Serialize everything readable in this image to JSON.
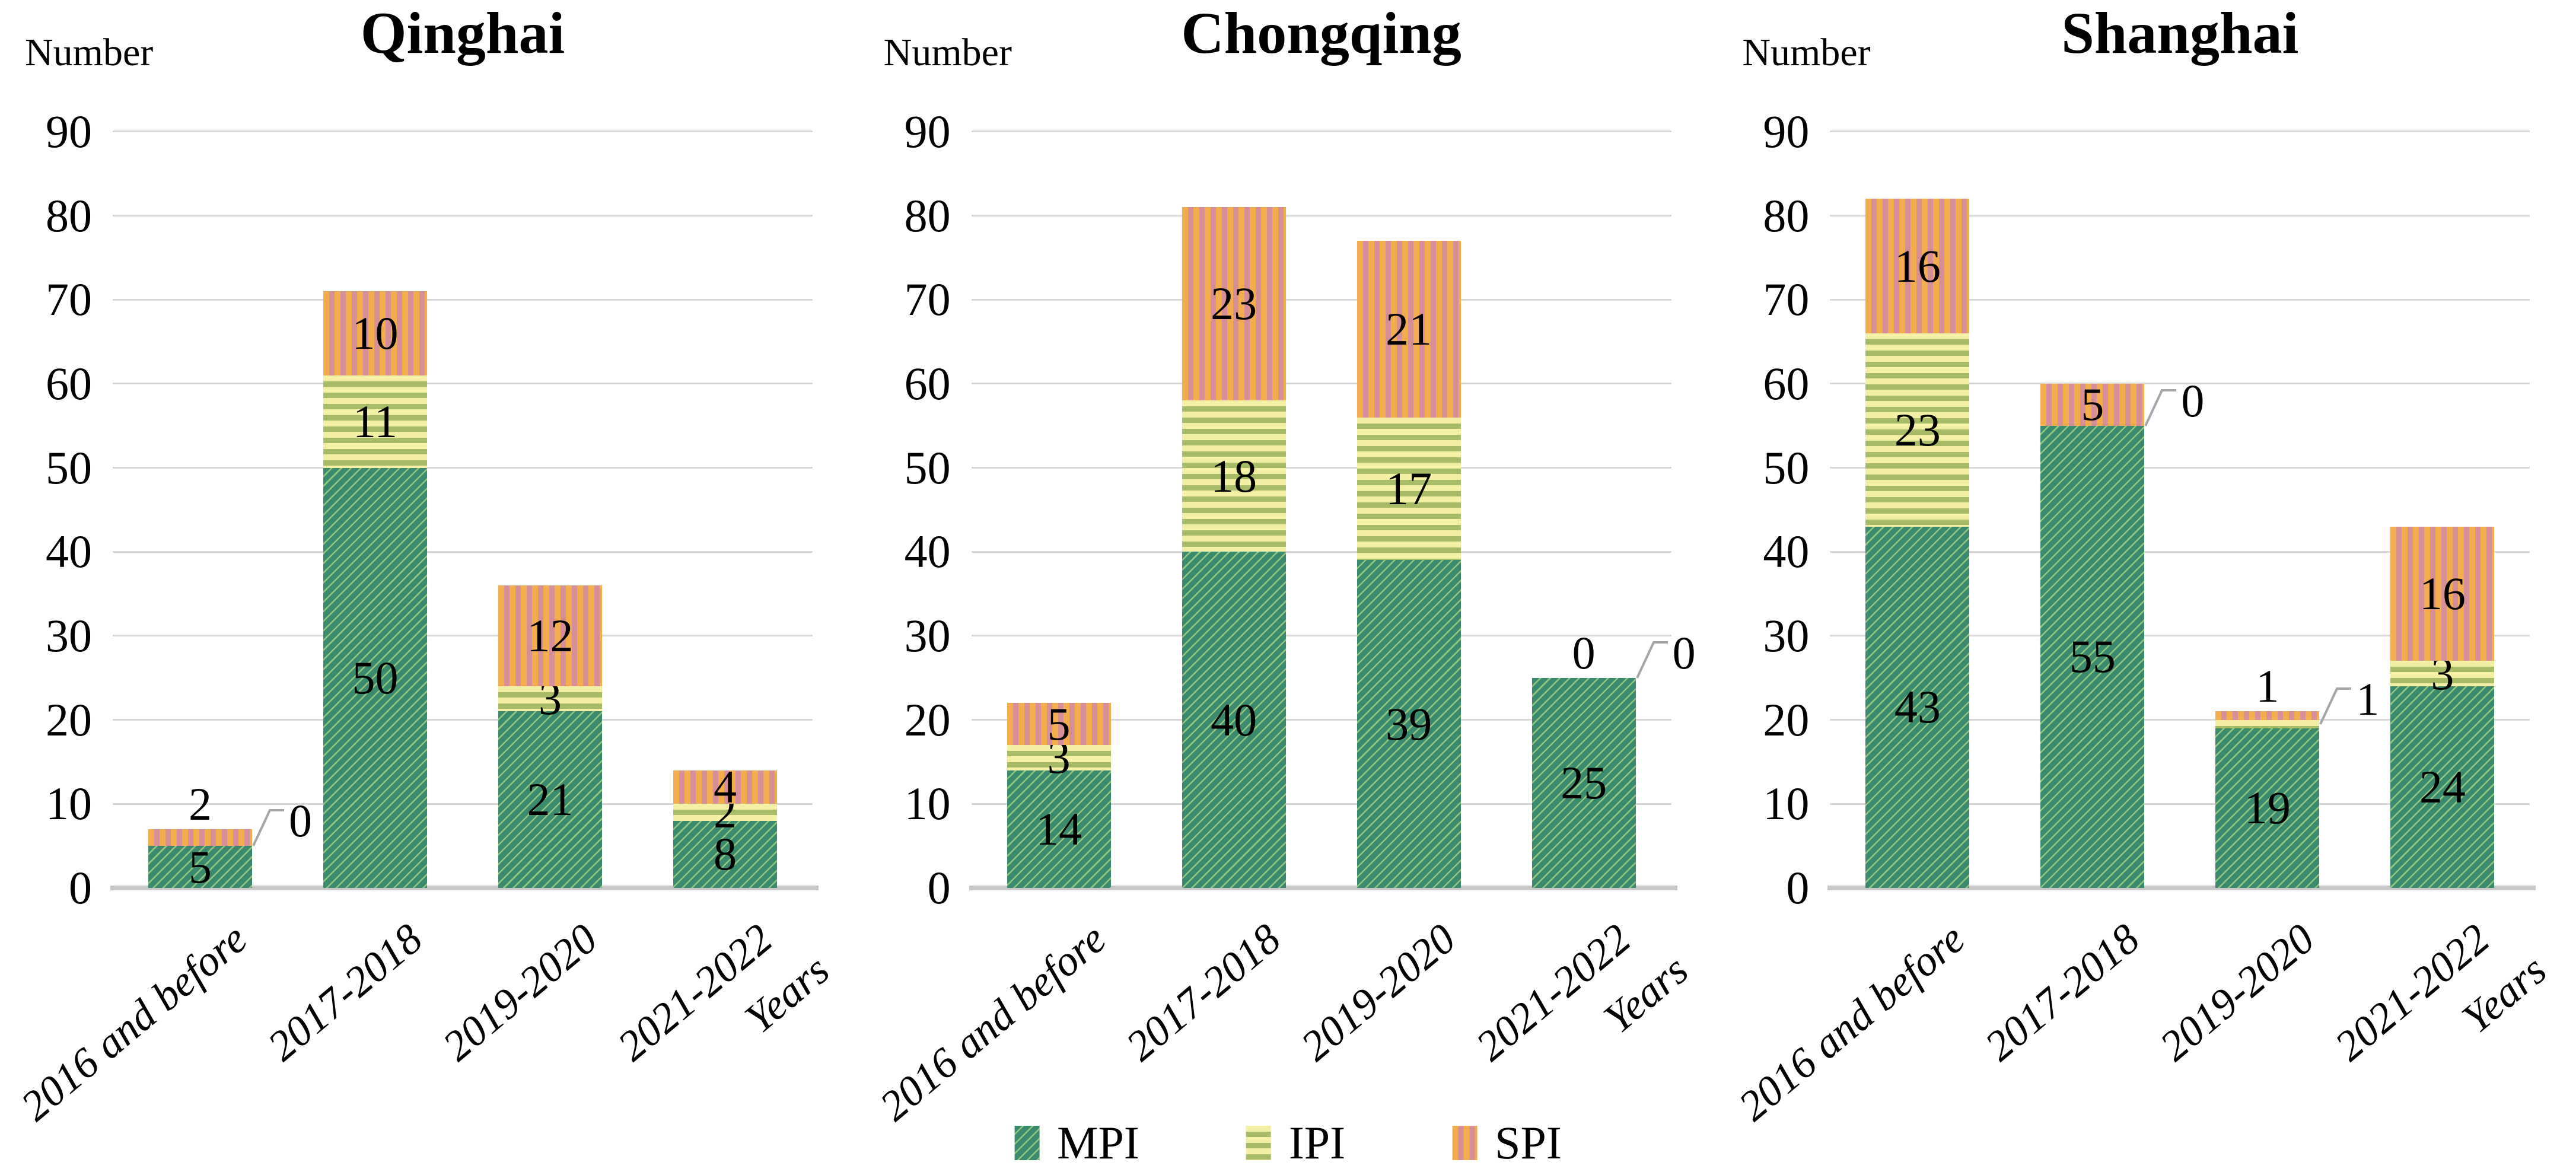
{
  "colors": {
    "background": "#ffffff",
    "text": "#000000",
    "mpi_base": "#3a8a6d",
    "mpi_line": "#93c77e",
    "ipi_light": "#f3f0a5",
    "ipi_dark": "#a8bb67",
    "spi_orange": "#f3ac4e",
    "spi_pink": "#d68f96",
    "gridline": "#d9d9d9",
    "axis_line": "#c8c8c8",
    "leader_line": "#a6a6a6"
  },
  "legend": {
    "items": [
      {
        "id": "mpi",
        "label": "MPI"
      },
      {
        "id": "ipi",
        "label": "IPI"
      },
      {
        "id": "spi",
        "label": "SPI"
      }
    ]
  },
  "chart_data": [
    {
      "type": "bar",
      "stacked": true,
      "title": "Qinghai",
      "ylabel": "Number",
      "xlabel": "Years",
      "ylim": [
        0,
        90
      ],
      "yticks": [
        0,
        10,
        20,
        30,
        40,
        50,
        60,
        70,
        80,
        90
      ],
      "grid": true,
      "legend_position": "bottom-center-shared",
      "categories": [
        "2016 and before",
        "2017-2018",
        "2019-2020",
        "2021-2022"
      ],
      "series": [
        {
          "name": "MPI",
          "values": [
            5,
            50,
            21,
            8
          ]
        },
        {
          "name": "IPI",
          "values": [
            0,
            11,
            3,
            2
          ]
        },
        {
          "name": "SPI",
          "values": [
            2,
            10,
            12,
            4
          ]
        }
      ],
      "label_overrides": [
        {
          "bar": 0,
          "series": "IPI",
          "placement": "callout"
        },
        {
          "bar": 0,
          "series": "SPI",
          "placement": "above"
        }
      ]
    },
    {
      "type": "bar",
      "stacked": true,
      "title": "Chongqing",
      "ylabel": "Number",
      "xlabel": "Years",
      "ylim": [
        0,
        90
      ],
      "yticks": [
        0,
        10,
        20,
        30,
        40,
        50,
        60,
        70,
        80,
        90
      ],
      "grid": true,
      "legend_position": "bottom-center-shared",
      "categories": [
        "2016 and before",
        "2017-2018",
        "2019-2020",
        "2021-2022"
      ],
      "series": [
        {
          "name": "MPI",
          "values": [
            14,
            40,
            39,
            25
          ]
        },
        {
          "name": "IPI",
          "values": [
            3,
            18,
            17,
            0
          ]
        },
        {
          "name": "SPI",
          "values": [
            5,
            23,
            21,
            0
          ]
        }
      ],
      "label_overrides": [
        {
          "bar": 3,
          "series": "IPI",
          "placement": "above"
        },
        {
          "bar": 3,
          "series": "SPI",
          "placement": "callout"
        }
      ]
    },
    {
      "type": "bar",
      "stacked": true,
      "title": "Shanghai",
      "ylabel": "Number",
      "xlabel": "Years",
      "ylim": [
        0,
        90
      ],
      "yticks": [
        0,
        10,
        20,
        30,
        40,
        50,
        60,
        70,
        80,
        90
      ],
      "grid": true,
      "legend_position": "bottom-center-shared",
      "categories": [
        "2016 and before",
        "2017-2018",
        "2019-2020",
        "2021-2022"
      ],
      "series": [
        {
          "name": "MPI",
          "values": [
            43,
            55,
            19,
            24
          ]
        },
        {
          "name": "IPI",
          "values": [
            23,
            0,
            1,
            3
          ]
        },
        {
          "name": "SPI",
          "values": [
            16,
            5,
            1,
            16
          ]
        }
      ],
      "label_overrides": [
        {
          "bar": 1,
          "series": "IPI",
          "placement": "callout"
        },
        {
          "bar": 2,
          "series": "SPI",
          "placement": "above"
        },
        {
          "bar": 2,
          "series": "IPI",
          "placement": "callout"
        }
      ]
    }
  ]
}
